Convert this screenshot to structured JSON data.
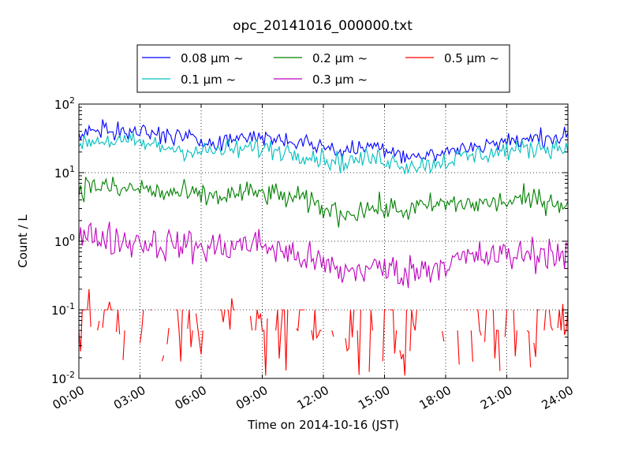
{
  "chart_data": {
    "type": "line",
    "title": "opc_20141016_000000.txt",
    "xlabel": "Time on 2014-10-16 (JST)",
    "ylabel": "Count / L",
    "x_unit": "hours",
    "xlim": [
      0,
      24
    ],
    "ylim": [
      0.01,
      100
    ],
    "y_scale": "log",
    "grid": true,
    "grid_style": "dotted",
    "legend_position": "top-center-outside",
    "x_tick_labels": [
      "00:00",
      "03:00",
      "06:00",
      "09:00",
      "12:00",
      "15:00",
      "18:00",
      "21:00",
      "24:00"
    ],
    "y_ticks": [
      {
        "value": 0.01,
        "base": "10",
        "exp": "-2"
      },
      {
        "value": 0.1,
        "base": "10",
        "exp": "-1"
      },
      {
        "value": 1,
        "base": "10",
        "exp": "0"
      },
      {
        "value": 10,
        "base": "10",
        "exp": "1"
      },
      {
        "value": 100,
        "base": "10",
        "exp": "2"
      }
    ],
    "series": [
      {
        "name": "0.08 μm ~",
        "color": "#0000ff",
        "x": [
          0,
          1,
          2,
          3,
          4,
          5,
          6,
          7,
          8,
          9,
          10,
          11,
          12,
          13,
          14,
          15,
          16,
          17,
          18,
          19,
          20,
          21,
          22,
          23,
          24
        ],
        "values": [
          38,
          42,
          40,
          40,
          36,
          33,
          28,
          30,
          32,
          34,
          30,
          28,
          24,
          20,
          24,
          24,
          18,
          17,
          20,
          23,
          26,
          28,
          30,
          34,
          32
        ]
      },
      {
        "name": "0.1 μm ~",
        "color": "#00bfbf",
        "x": [
          0,
          1,
          2,
          3,
          4,
          5,
          6,
          7,
          8,
          9,
          10,
          11,
          12,
          13,
          14,
          15,
          16,
          17,
          18,
          19,
          20,
          21,
          22,
          23,
          24
        ],
        "values": [
          28,
          30,
          28,
          27,
          24,
          22,
          20,
          21,
          22,
          23,
          21,
          19,
          16,
          14,
          16,
          16,
          13,
          13,
          15,
          17,
          19,
          21,
          22,
          24,
          22
        ]
      },
      {
        "name": "0.2 μm ~",
        "color": "#008000",
        "x": [
          0,
          1,
          2,
          3,
          4,
          5,
          6,
          7,
          8,
          9,
          10,
          11,
          12,
          13,
          14,
          15,
          16,
          17,
          18,
          19,
          20,
          21,
          22,
          23,
          24
        ],
        "values": [
          6,
          6.5,
          5.5,
          6,
          5,
          5,
          4.5,
          4.5,
          5,
          5,
          4.5,
          4,
          3,
          2.5,
          3,
          3,
          2.8,
          3.2,
          3.5,
          3.5,
          3.5,
          3.8,
          4,
          4,
          3.5
        ]
      },
      {
        "name": "0.3 μm ~",
        "color": "#bf00bf",
        "x": [
          0,
          1,
          2,
          3,
          4,
          5,
          6,
          7,
          8,
          9,
          10,
          11,
          12,
          13,
          14,
          15,
          16,
          17,
          18,
          19,
          20,
          21,
          22,
          23,
          24
        ],
        "values": [
          1.1,
          1.2,
          1.0,
          1.0,
          0.9,
          0.9,
          0.8,
          0.8,
          0.9,
          0.9,
          0.7,
          0.6,
          0.45,
          0.35,
          0.4,
          0.4,
          0.35,
          0.4,
          0.5,
          0.55,
          0.6,
          0.6,
          0.65,
          0.7,
          0.6
        ]
      },
      {
        "name": "0.5 μm ~",
        "color": "#ff0000",
        "x": [
          0,
          1,
          2,
          3,
          4,
          5,
          6,
          7,
          8,
          9,
          10,
          11,
          12,
          13,
          14,
          15,
          16,
          17,
          18,
          19,
          20,
          21,
          22,
          23,
          24
        ],
        "values": [
          0.05,
          0.06,
          0.05,
          0.05,
          0.04,
          0.04,
          0.04,
          0.04,
          0.04,
          0.04,
          0.03,
          0.03,
          0.03,
          0.025,
          0.03,
          0.03,
          0.025,
          0.03,
          0.03,
          0.035,
          0.04,
          0.04,
          0.04,
          0.045,
          0.04
        ]
      }
    ]
  }
}
